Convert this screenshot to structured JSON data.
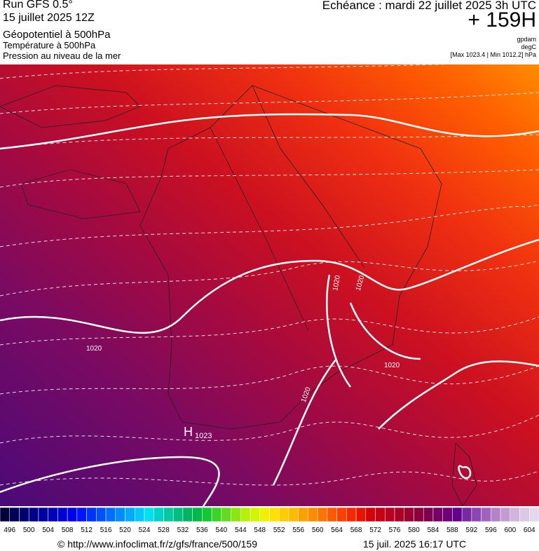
{
  "header": {
    "run": "Run GFS 0.5°",
    "date": "15 juillet 2025 12Z",
    "field1": "Géopotentiel à 500hPa",
    "field2": "Température à 500hPa",
    "field3": "Pression au niveau de la mer",
    "forecast": "Echéance : mardi 22 juillet 2025 3h UTC",
    "lead": "+ 159H",
    "unit1": "gpdam",
    "unit2": "degC",
    "pressure_range": "[Max 1023.4 | Min 1012.2] hPa"
  },
  "map": {
    "isobar_labels": [
      "1020",
      "1020",
      "1020",
      "1020",
      "1020"
    ],
    "high": {
      "symbol": "H",
      "value": "1023"
    }
  },
  "colorbar": {
    "labels": [
      "496",
      "500",
      "504",
      "508",
      "512",
      "516",
      "520",
      "524",
      "528",
      "532",
      "536",
      "540",
      "544",
      "548",
      "552",
      "556",
      "560",
      "564",
      "568",
      "572",
      "576",
      "580",
      "584",
      "588",
      "592",
      "596",
      "600",
      "604"
    ],
    "colors": [
      "#00003c",
      "#000055",
      "#00006e",
      "#000087",
      "#0000a0",
      "#0000b9",
      "#0000d2",
      "#0000eb",
      "#0014ff",
      "#0032ff",
      "#0050ff",
      "#006eff",
      "#008cff",
      "#00aaff",
      "#00c8ff",
      "#00e0f0",
      "#00d2c8",
      "#00c8a0",
      "#00be82",
      "#00b464",
      "#00b946",
      "#14c832",
      "#3cd228",
      "#64dc1e",
      "#8ce614",
      "#b4f00a",
      "#d2f500",
      "#f0f000",
      "#ffe100",
      "#ffcd00",
      "#ffb900",
      "#ffa000",
      "#ff8c00",
      "#ff7300",
      "#ff5a00",
      "#ff4100",
      "#f52800",
      "#e61400",
      "#d7000a",
      "#c80014",
      "#b9001e",
      "#aa0028",
      "#9b0032",
      "#8c003c",
      "#800050",
      "#780064",
      "#6e0078",
      "#64008c",
      "#7828a0",
      "#8c46b4",
      "#a064be",
      "#b482c8",
      "#c39bd2",
      "#d2b4dc",
      "#dcc8e6",
      "#e6d7ee"
    ]
  },
  "footer": {
    "source": "© http://www.infoclimat.fr/z/gfs/france/500/159",
    "timestamp": "15 juil. 2025 16:17 UTC"
  }
}
